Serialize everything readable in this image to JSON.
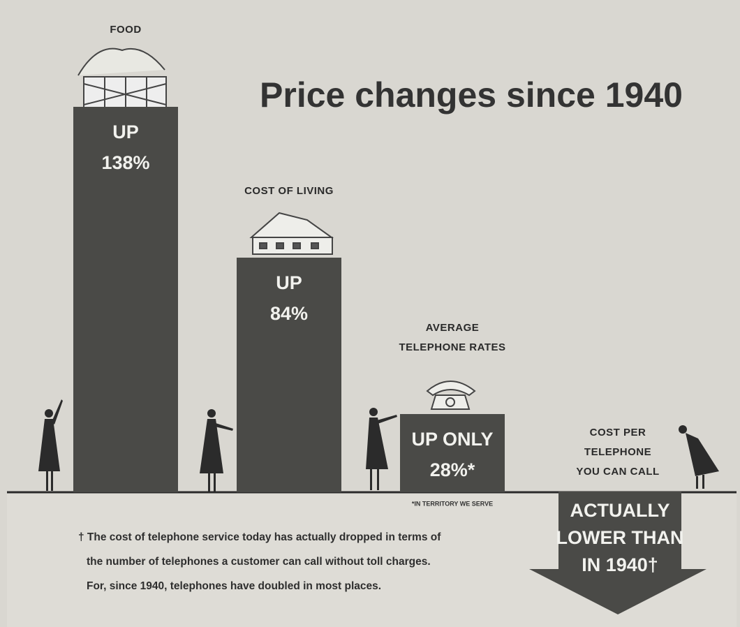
{
  "chart_data": {
    "type": "bar",
    "title": "Price changes since 1940",
    "categories": [
      [
        "FOOD"
      ],
      [
        "COST OF LIVING"
      ],
      [
        "AVERAGE",
        "TELEPHONE RATES"
      ]
    ],
    "values": [
      138,
      84,
      28
    ],
    "value_labels": [
      [
        "UP",
        "138%"
      ],
      [
        "UP",
        "84%"
      ],
      [
        "UP ONLY",
        "28%*"
      ]
    ],
    "color": "#4a4a47",
    "footnote": "*IN TERRITORY WE SERVE",
    "below_baseline": {
      "label": [
        "COST PER",
        "TELEPHONE",
        "YOU CAN CALL"
      ],
      "text": [
        "ACTUALLY",
        "LOWER THAN",
        "IN 1940†"
      ]
    },
    "note": [
      "† The cost of telephone service today has actually dropped in terms of",
      "the number of telephones a customer can call without toll charges.",
      "For, since 1940, telephones have doubled in most places."
    ]
  }
}
